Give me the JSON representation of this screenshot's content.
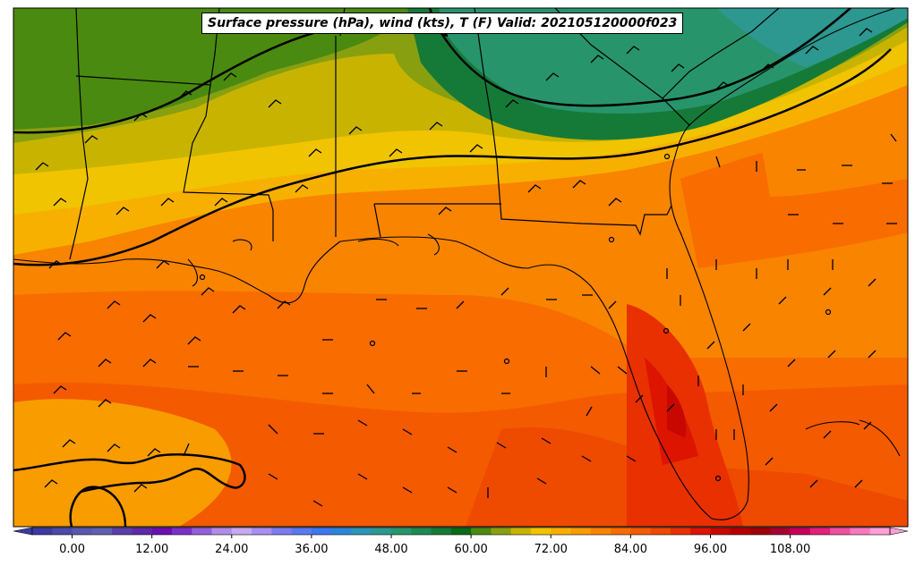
{
  "map": {
    "title": "Surface pressure (hPa), wind (kts), T (F) Valid: 202105120000f023"
  },
  "colorbar": {
    "ticks": [
      {
        "value": 0,
        "label": "0.00"
      },
      {
        "value": 12,
        "label": "12.00"
      },
      {
        "value": 24,
        "label": "24.00"
      },
      {
        "value": 36,
        "label": "36.00"
      },
      {
        "value": 48,
        "label": "48.00"
      },
      {
        "value": 60,
        "label": "60.00"
      },
      {
        "value": 72,
        "label": "72.00"
      },
      {
        "value": 84,
        "label": "84.00"
      },
      {
        "value": 96,
        "label": "96.00"
      },
      {
        "value": 108,
        "label": "108.00"
      }
    ],
    "min": -6,
    "max": 123,
    "colors": [
      "#3b3ba0",
      "#4a4aa8",
      "#5858b0",
      "#6060b0",
      "#5a3fa8",
      "#5e2aa8",
      "#6a10b0",
      "#7a30c8",
      "#9060d8",
      "#b08ce8",
      "#c8a8f0",
      "#a890f0",
      "#7c7cf0",
      "#5a78f0",
      "#3c78f0",
      "#2c86d8",
      "#2c94b8",
      "#2c9890",
      "#28946c",
      "#1e8850",
      "#157a38",
      "#0a6a18",
      "#4a8a10",
      "#88a010",
      "#c8b400",
      "#f0c400",
      "#f8b000",
      "#f89c00",
      "#f88400",
      "#f86c00",
      "#f45a00",
      "#ee4a00",
      "#e83000",
      "#dc1400",
      "#c80800",
      "#b40000",
      "#a00008",
      "#a80030",
      "#c8005a",
      "#e0207c",
      "#f050a0",
      "#f878c0",
      "#fca0d8"
    ]
  }
}
